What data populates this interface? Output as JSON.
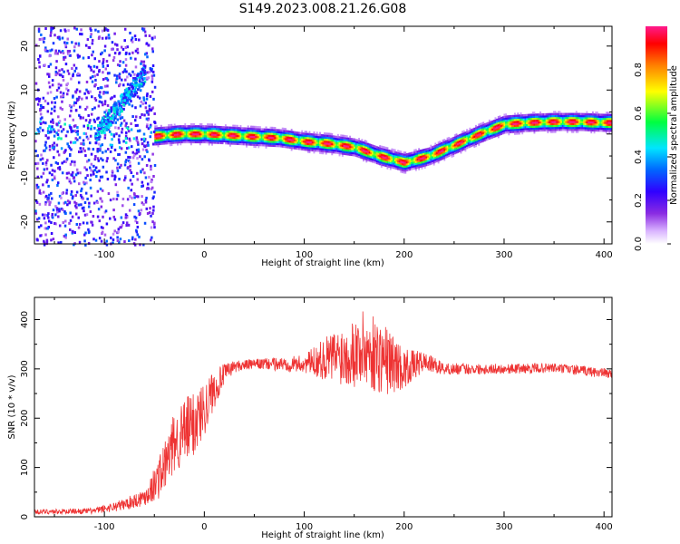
{
  "chart_data": [
    {
      "type": "heatmap",
      "title": "S149.2023.008.21.26.G08",
      "xlabel": "Height of straight line (km)",
      "ylabel": "Frequency (Hz)",
      "xlim": [
        -170,
        408
      ],
      "ylim": [
        -25,
        24.5
      ],
      "x_ticks": [
        -100,
        0,
        100,
        200,
        300,
        400
      ],
      "y_ticks": [
        -20,
        -10,
        0,
        10,
        20
      ],
      "colorbar": {
        "label": "Normalized spectral amplitude",
        "range": [
          0,
          1
        ],
        "ticks": [
          "0.0",
          "0.2",
          "0.4",
          "0.6",
          "0.8"
        ],
        "tick_values": [
          0,
          0.2,
          0.4,
          0.6,
          0.8
        ],
        "colors": [
          "#ffffff",
          "#b266ff",
          "#6a00ff",
          "#0000ff",
          "#00e5ff",
          "#00ff40",
          "#ffff00",
          "#ff7f00",
          "#ff0000",
          "#ff1a8c"
        ]
      },
      "ridge": {
        "x": [
          -50,
          -25,
          0,
          25,
          50,
          75,
          100,
          125,
          150,
          175,
          200,
          225,
          250,
          275,
          300,
          325,
          350,
          375,
          400
        ],
        "y": [
          -0.5,
          0,
          0,
          -0.3,
          -0.6,
          -0.9,
          -1.7,
          -2.2,
          -3,
          -5,
          -6.5,
          -5,
          -2.5,
          0,
          2.2,
          2.6,
          2.8,
          2.8,
          2.6
        ]
      },
      "grid": false
    },
    {
      "type": "line",
      "xlabel": "Height of straight line (km)",
      "ylabel": "SNR (10 * v/v)",
      "xlim": [
        -170,
        408
      ],
      "ylim": [
        0,
        445
      ],
      "x_ticks": [
        -100,
        0,
        100,
        200,
        300,
        400
      ],
      "y_ticks": [
        0,
        100,
        200,
        300,
        400
      ],
      "color": "#ee3333",
      "envelope": {
        "x": [
          -170,
          -110,
          -80,
          -60,
          -50,
          -40,
          -30,
          -20,
          -10,
          0,
          10,
          20,
          30,
          50,
          100,
          130,
          160,
          180,
          200,
          220,
          240,
          300,
          350,
          408
        ],
        "mean": [
          10,
          12,
          25,
          40,
          65,
          100,
          150,
          170,
          190,
          220,
          260,
          290,
          305,
          310,
          310,
          325,
          340,
          320,
          300,
          315,
          300,
          300,
          302,
          290
        ],
        "spread": [
          5,
          6,
          12,
          18,
          35,
          55,
          60,
          70,
          70,
          55,
          40,
          20,
          12,
          10,
          18,
          55,
          80,
          75,
          40,
          20,
          12,
          10,
          10,
          10
        ]
      },
      "grid": false
    }
  ]
}
